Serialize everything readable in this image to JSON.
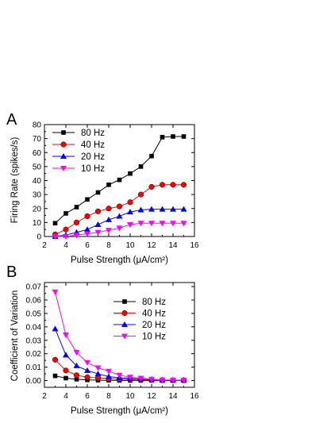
{
  "chart_data": [
    {
      "type": "line",
      "panel_label": "A",
      "xlabel": "Pulse Strength (μA/cm²)",
      "ylabel": "Firing Rate (spikes/s)",
      "xlim": [
        2,
        16
      ],
      "ylim": [
        0,
        80
      ],
      "x_ticks": [
        2,
        4,
        6,
        8,
        10,
        12,
        14,
        16
      ],
      "y_ticks": [
        0,
        10,
        20,
        30,
        40,
        50,
        60,
        70,
        80
      ],
      "x_tick_labels": [
        "2",
        "4",
        "6",
        "8",
        "10",
        "12",
        "14",
        "16"
      ],
      "y_tick_labels": [
        "0",
        "10",
        "20",
        "30",
        "40",
        "50",
        "60",
        "70",
        "80"
      ],
      "legend_position": "top-left",
      "x": [
        3,
        4,
        5,
        6,
        7,
        8,
        9,
        10,
        11,
        12,
        13,
        14,
        15
      ],
      "series": [
        {
          "name": "80 Hz",
          "color": "#000000",
          "marker": "square",
          "values": [
            9.5,
            16.5,
            21,
            26.5,
            31.5,
            37,
            40.5,
            45,
            50,
            57.5,
            71,
            71.5,
            71.5
          ]
        },
        {
          "name": "40 Hz",
          "color": "#ff0000",
          "marker": "circle",
          "values": [
            1.5,
            5,
            10,
            14.5,
            18,
            20,
            21.5,
            24.5,
            30,
            35.5,
            37,
            37,
            37
          ]
        },
        {
          "name": "20 Hz",
          "color": "#0000ff",
          "marker": "triangle-up",
          "values": [
            0,
            1,
            3,
            5,
            8.5,
            12,
            14.5,
            17.5,
            19,
            19.5,
            19.5,
            19.5,
            19.5
          ]
        },
        {
          "name": "10 Hz",
          "color": "#ff00ff",
          "marker": "triangle-down",
          "values": [
            0,
            0,
            1,
            2,
            3,
            4.5,
            6,
            8.5,
            9.5,
            9.5,
            9.5,
            9.5,
            9.5
          ]
        }
      ]
    },
    {
      "type": "line",
      "panel_label": "B",
      "xlabel": "Pulse Strength (μA/cm²)",
      "ylabel": "Coefficient of Variation",
      "xlim": [
        2,
        16
      ],
      "ylim": [
        -0.005,
        0.073
      ],
      "x_ticks": [
        2,
        4,
        6,
        8,
        10,
        12,
        14,
        16
      ],
      "y_ticks": [
        0,
        0.01,
        0.02,
        0.03,
        0.04,
        0.05,
        0.06,
        0.07
      ],
      "x_tick_labels": [
        "2",
        "4",
        "6",
        "8",
        "10",
        "12",
        "14",
        "16"
      ],
      "y_tick_labels": [
        "0.00",
        "0.01",
        "0.02",
        "0.03",
        "0.04",
        "0.05",
        "0.06",
        "0.07"
      ],
      "legend_position": "top-right",
      "x": [
        3,
        4,
        5,
        6,
        7,
        8,
        9,
        10,
        11,
        12,
        13,
        14,
        15
      ],
      "series": [
        {
          "name": "80 Hz",
          "color": "#000000",
          "marker": "square",
          "values": [
            0.0035,
            0.0018,
            0.001,
            0.0005,
            0.0003,
            0.0002,
            0.0001,
            0.0001,
            0.0001,
            0.0001,
            0.0,
            0.0,
            0.0
          ]
        },
        {
          "name": "40 Hz",
          "color": "#ff0000",
          "marker": "circle",
          "values": [
            0.0155,
            0.0075,
            0.004,
            0.0025,
            0.002,
            0.0015,
            0.001,
            0.001,
            0.0008,
            0.0005,
            0.0003,
            0.0002,
            0.0002
          ]
        },
        {
          "name": "20 Hz",
          "color": "#0000ff",
          "marker": "triangle-up",
          "values": [
            0.0385,
            0.019,
            0.011,
            0.0075,
            0.005,
            0.003,
            0.002,
            0.0015,
            0.0012,
            0.001,
            0.0005,
            0.0003,
            0.0003
          ]
        },
        {
          "name": "10 Hz",
          "color": "#ff00ff",
          "marker": "triangle-down",
          "values": [
            0.066,
            0.034,
            0.021,
            0.0135,
            0.0095,
            0.007,
            0.004,
            0.0025,
            0.0018,
            0.001,
            0.0005,
            0.0003,
            0.0002
          ]
        }
      ]
    }
  ]
}
